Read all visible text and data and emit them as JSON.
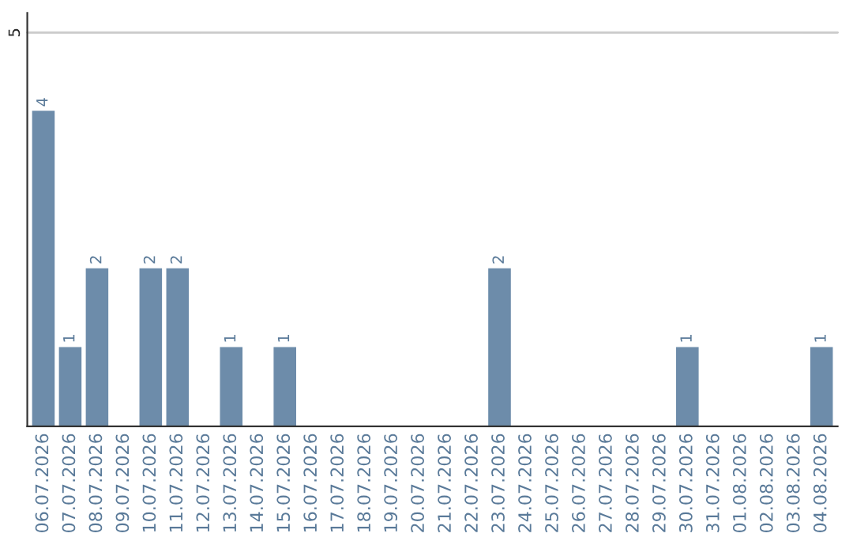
{
  "chart_data": {
    "type": "bar",
    "categories": [
      "06.07.2026",
      "07.07.2026",
      "08.07.2026",
      "09.07.2026",
      "10.07.2026",
      "11.07.2026",
      "12.07.2026",
      "13.07.2026",
      "14.07.2026",
      "15.07.2026",
      "16.07.2026",
      "17.07.2026",
      "18.07.2026",
      "19.07.2026",
      "20.07.2026",
      "21.07.2026",
      "22.07.2026",
      "23.07.2026",
      "24.07.2026",
      "25.07.2026",
      "26.07.2026",
      "27.07.2026",
      "28.07.2026",
      "29.07.2026",
      "30.07.2026",
      "31.07.2026",
      "01.08.2026",
      "02.08.2026",
      "03.08.2026",
      "04.08.2026"
    ],
    "values": [
      4,
      1,
      2,
      0,
      2,
      2,
      0,
      1,
      0,
      1,
      0,
      0,
      0,
      0,
      0,
      0,
      0,
      2,
      0,
      0,
      0,
      0,
      0,
      0,
      1,
      0,
      0,
      0,
      0,
      1
    ],
    "value_labels": [
      "4",
      "1",
      "2",
      null,
      "2",
      "2",
      null,
      "1",
      null,
      "1",
      null,
      null,
      null,
      null,
      null,
      null,
      null,
      "2",
      null,
      null,
      null,
      null,
      null,
      null,
      "1",
      null,
      null,
      null,
      null,
      "1"
    ],
    "color": "#6d8caa",
    "ylim": [
      0,
      5.25
    ],
    "yticks": [
      5
    ],
    "grid": "y"
  }
}
